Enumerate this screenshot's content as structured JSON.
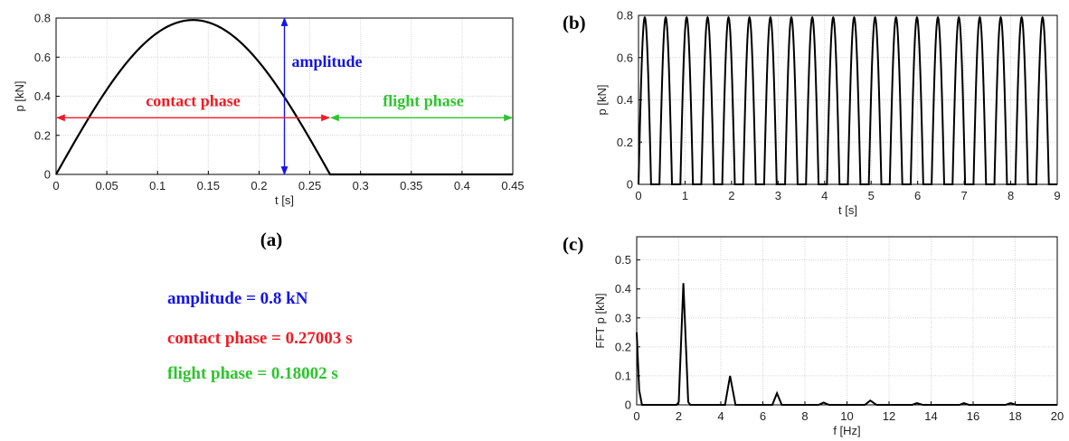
{
  "colors": {
    "amplitude": "#1414e6",
    "contact": "#ee1c24",
    "flight": "#2ec42e",
    "curve": "#000000",
    "grid": "#d0d0d0"
  },
  "panel_labels": {
    "a": "(a)",
    "b": "(b)",
    "c": "(c)"
  },
  "summary": {
    "amplitude": "amplitude = 0.8 kN",
    "contact": "contact phase = 0.27003 s",
    "flight": "flight phase = 0.18002 s"
  },
  "chart_data": [
    {
      "id": "a",
      "type": "line",
      "xlabel": "t [s]",
      "ylabel": "p [kN]",
      "xlim": [
        0,
        0.45
      ],
      "ylim": [
        0,
        0.8
      ],
      "xticks": [
        "0",
        "0.05",
        "0.1",
        "0.15",
        "0.2",
        "0.25",
        "0.3",
        "0.35",
        "0.4",
        "0.45"
      ],
      "yticks": [
        "0",
        "0.2",
        "0.4",
        "0.6",
        "0.8"
      ],
      "grid": true,
      "series": [
        {
          "x": [
            0,
            0.02,
            0.04,
            0.06,
            0.08,
            0.1,
            0.12,
            0.135,
            0.15,
            0.17,
            0.19,
            0.21,
            0.23,
            0.25,
            0.27,
            0.45
          ],
          "values": [
            0,
            0.183,
            0.356,
            0.51,
            0.637,
            0.73,
            0.783,
            0.79,
            0.785,
            0.74,
            0.657,
            0.541,
            0.4,
            0.244,
            0,
            0
          ]
        }
      ],
      "annotations": [
        {
          "id": "amplitude",
          "text": "amplitude",
          "x": 0.225,
          "y_range": [
            0,
            0.8
          ],
          "color": "#1414e6"
        },
        {
          "id": "contact",
          "text": "contact phase",
          "x_range": [
            0,
            0.27
          ],
          "y": 0.29,
          "color": "#ee1c24"
        },
        {
          "id": "flight",
          "text": "flight phase",
          "x_range": [
            0.27,
            0.45
          ],
          "y": 0.29,
          "color": "#2ec42e"
        }
      ]
    },
    {
      "id": "b",
      "type": "line",
      "xlabel": "t [s]",
      "ylabel": "p [kN]",
      "xlim": [
        0,
        9
      ],
      "ylim": [
        0,
        0.8
      ],
      "xticks": [
        "0",
        "1",
        "2",
        "3",
        "4",
        "5",
        "6",
        "7",
        "8",
        "9"
      ],
      "yticks": [
        "0",
        "0.2",
        "0.4",
        "0.6",
        "0.8"
      ],
      "grid": true,
      "period": 0.45,
      "contact": 0.27,
      "amplitude": 0.79,
      "cycles": 20
    },
    {
      "id": "c",
      "type": "line",
      "xlabel": "f [Hz]",
      "ylabel": "FFT p [kN]",
      "xlim": [
        0,
        20
      ],
      "ylim": [
        0,
        0.58
      ],
      "xticks": [
        "0",
        "2",
        "4",
        "6",
        "8",
        "10",
        "12",
        "14",
        "16",
        "18",
        "20"
      ],
      "yticks": [
        "0",
        "0.1",
        "0.2",
        "0.3",
        "0.4",
        "0.5"
      ],
      "grid": true,
      "series": [
        {
          "x": [
            0,
            0.12,
            0.25,
            1.9,
            2.0,
            2.22,
            2.45,
            2.55,
            4.2,
            4.44,
            4.7,
            6.45,
            6.67,
            6.9,
            8.65,
            8.89,
            9.15,
            10.85,
            11.11,
            11.4,
            13.1,
            13.33,
            13.6,
            15.35,
            15.56,
            15.8,
            17.55,
            17.78,
            18.05,
            20
          ],
          "values": [
            0.25,
            0.05,
            0.0,
            0.0,
            0.01,
            0.42,
            0.01,
            0.0,
            0.0,
            0.1,
            0.0,
            0.0,
            0.04,
            0.0,
            0.0,
            0.008,
            0.0,
            0.0,
            0.015,
            0.0,
            0.0,
            0.006,
            0.0,
            0.0,
            0.006,
            0.0,
            0.0,
            0.006,
            0.0,
            0.0
          ]
        }
      ]
    }
  ]
}
